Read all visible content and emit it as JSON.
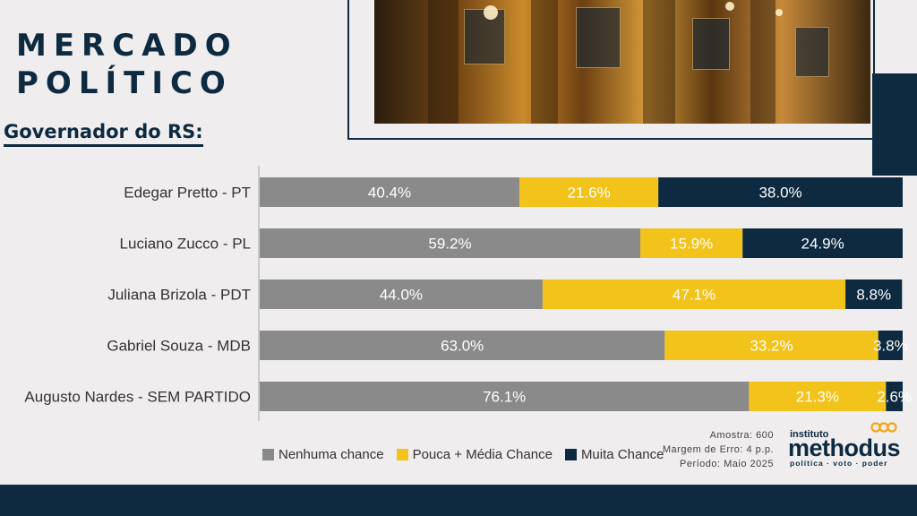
{
  "header": {
    "brand_line1": "MERCADO",
    "brand_line2": "POLÍTICO",
    "subtitle": "Governador do RS:"
  },
  "chart_data": {
    "type": "bar",
    "orientation": "horizontal",
    "stacked": true,
    "categories": [
      "Edegar Pretto - PT",
      "Luciano Zucco - PL",
      "Juliana Brizola - PDT",
      "Gabriel Souza - MDB",
      "Augusto Nardes - SEM PARTIDO"
    ],
    "series": [
      {
        "name": "Nenhuma chance",
        "color": "#8a8a8a",
        "values": [
          40.4,
          59.2,
          44.0,
          63.0,
          76.1
        ],
        "labels": [
          "40.4%",
          "59.2%",
          "44.0%",
          "63.0%",
          "76.1%"
        ]
      },
      {
        "name": "Pouca + Média Chance",
        "color": "#f2c31a",
        "values": [
          21.6,
          15.9,
          47.1,
          33.2,
          21.3
        ],
        "labels": [
          "21.6%",
          "15.9%",
          "47.1%",
          "33.2%",
          "21.3%"
        ]
      },
      {
        "name": "Muita Chance",
        "color": "#0d2a40",
        "values": [
          38.0,
          24.9,
          8.8,
          3.8,
          2.6
        ],
        "labels": [
          "38.0%",
          "24.9%",
          "8.8%",
          "3.8%",
          "2.6%"
        ]
      }
    ],
    "xlim": [
      0,
      100
    ],
    "grid": false,
    "legend": "bottom"
  },
  "meta": {
    "sample": "Amostra: 600",
    "margin": "Margem de Erro: 4 p.p.",
    "period": "Período: Maio 2025"
  },
  "logo": {
    "top": "instituto",
    "main": "methodus",
    "sub": "política  ·  voto  ·  poder",
    "color": "#0d2a40",
    "icon_color": "#f2a51a",
    "icon": "infinity-chain-icon"
  },
  "colors": {
    "navy": "#0d2a40",
    "gray": "#8a8a8a",
    "yellow": "#f2c31a",
    "background": "#efeded"
  }
}
